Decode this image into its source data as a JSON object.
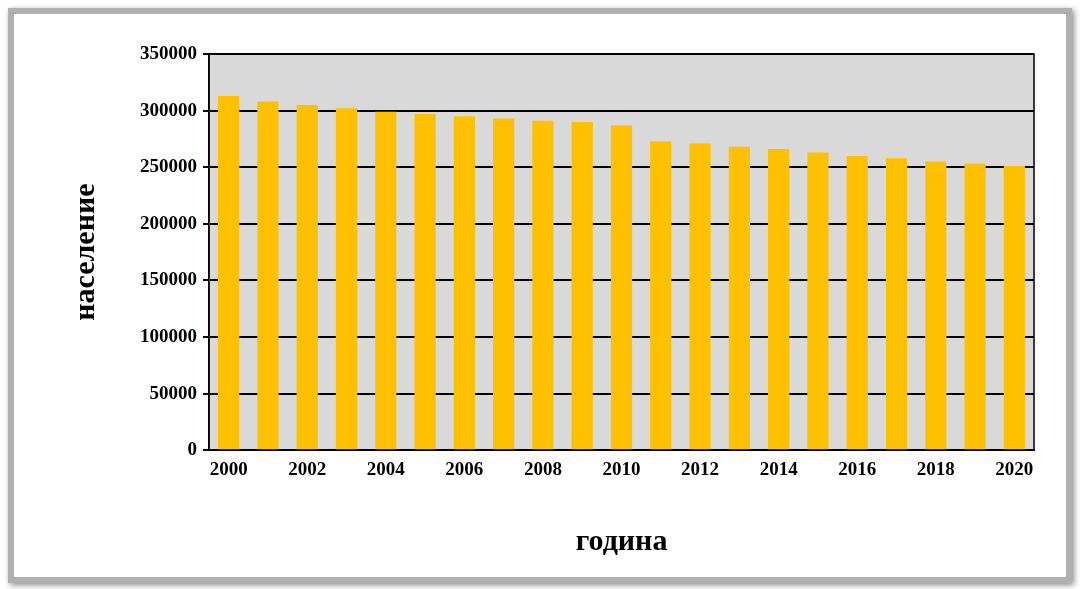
{
  "chart_data": {
    "type": "bar",
    "xlabel": "година",
    "ylabel": "население",
    "categories": [
      "2000",
      null,
      "2002",
      null,
      "2004",
      null,
      "2006",
      null,
      "2008",
      null,
      "2010",
      null,
      "2012",
      null,
      "2014",
      null,
      "2016",
      null,
      "2018",
      null,
      "2020"
    ],
    "values": [
      313000,
      308000,
      305000,
      302000,
      299000,
      297000,
      295000,
      293000,
      291000,
      290000,
      287000,
      273000,
      271000,
      268000,
      266000,
      263000,
      260000,
      258000,
      255000,
      253000,
      251000
    ],
    "color": "#ffc000",
    "ylim": [
      0,
      350000
    ],
    "yticks": [
      0,
      50000,
      100000,
      150000,
      200000,
      250000,
      300000,
      350000
    ],
    "grid": "y",
    "legend": false
  }
}
